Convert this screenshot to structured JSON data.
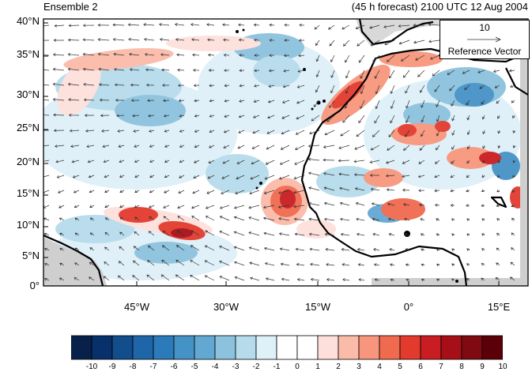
{
  "header": {
    "left_title": "Ensemble 2",
    "right_title": "(45 h forecast) 2100 UTC 12 Aug 2004"
  },
  "map": {
    "lat_labels": [
      "40°N",
      "35°N",
      "30°N",
      "25°N",
      "20°N",
      "15°N",
      "10°N",
      "5°N",
      "0°"
    ],
    "lon_labels": [
      "45°W",
      "30°W",
      "15°W",
      "0°",
      "15°E"
    ],
    "coastline_color": "#000000",
    "land_mask_color": "#cfcfcf"
  },
  "reference_vector": {
    "magnitude": "10",
    "label": "Reference Vector"
  },
  "colorbar": {
    "labels": [
      "-10",
      "-9",
      "-8",
      "-7",
      "-6",
      "-5",
      "-4",
      "-3",
      "-2",
      "-1",
      "0",
      "1",
      "2",
      "3",
      "4",
      "5",
      "6",
      "7",
      "8",
      "9",
      "10"
    ],
    "colors": [
      "#08214a",
      "#08306b",
      "#124d8c",
      "#1f66a8",
      "#2b7bba",
      "#4592c6",
      "#63a8d3",
      "#8cc2de",
      "#b6dcec",
      "#def0f8",
      "#ffffff",
      "#ffffff",
      "#fde0dc",
      "#fbbba9",
      "#f7967c",
      "#f06a4f",
      "#e33a2e",
      "#c91d21",
      "#a70f18",
      "#7f0a12",
      "#5c0008"
    ]
  }
}
